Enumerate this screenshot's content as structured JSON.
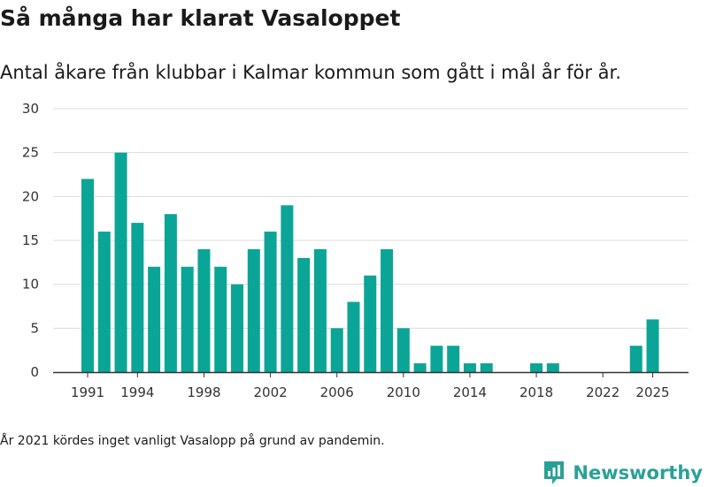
{
  "title": "Så många har klarat Vasaloppet",
  "subtitle": "Antal åkare från klubbar i Kalmar kommun som gått i mål år för år.",
  "note": "År 2021 kördes inget vanligt Vasalopp på grund av pandemin.",
  "brand": {
    "name": "Newsworthy",
    "icon": "bar-chart-logo-icon"
  },
  "colors": {
    "bar": "#0aa597",
    "grid": "#dcdcdc",
    "axis": "#333333",
    "brand": "#2aa197"
  },
  "chart_data": {
    "type": "bar",
    "title": "Så många har klarat Vasaloppet",
    "xlabel": "",
    "ylabel": "",
    "ylim": [
      0,
      30
    ],
    "yticks": [
      "0",
      "5",
      "10",
      "15",
      "20",
      "25",
      "30"
    ],
    "xticks": [
      "1991",
      "1994",
      "1998",
      "2002",
      "2006",
      "2010",
      "2014",
      "2018",
      "2022",
      "2025"
    ],
    "grid": true,
    "categories": [
      "1991",
      "1992",
      "1993",
      "1994",
      "1995",
      "1996",
      "1997",
      "1998",
      "1999",
      "2000",
      "2001",
      "2002",
      "2003",
      "2004",
      "2005",
      "2006",
      "2007",
      "2008",
      "2009",
      "2010",
      "2011",
      "2012",
      "2013",
      "2014",
      "2015",
      "2016",
      "2017",
      "2018",
      "2019",
      "2020",
      "2021",
      "2022",
      "2023",
      "2024",
      "2025"
    ],
    "values": [
      22,
      16,
      25,
      17,
      12,
      18,
      12,
      14,
      12,
      10,
      14,
      16,
      19,
      13,
      14,
      5,
      8,
      11,
      14,
      5,
      1,
      3,
      3,
      1,
      1,
      0,
      0,
      1,
      1,
      0,
      0,
      0,
      0,
      3,
      6
    ]
  }
}
